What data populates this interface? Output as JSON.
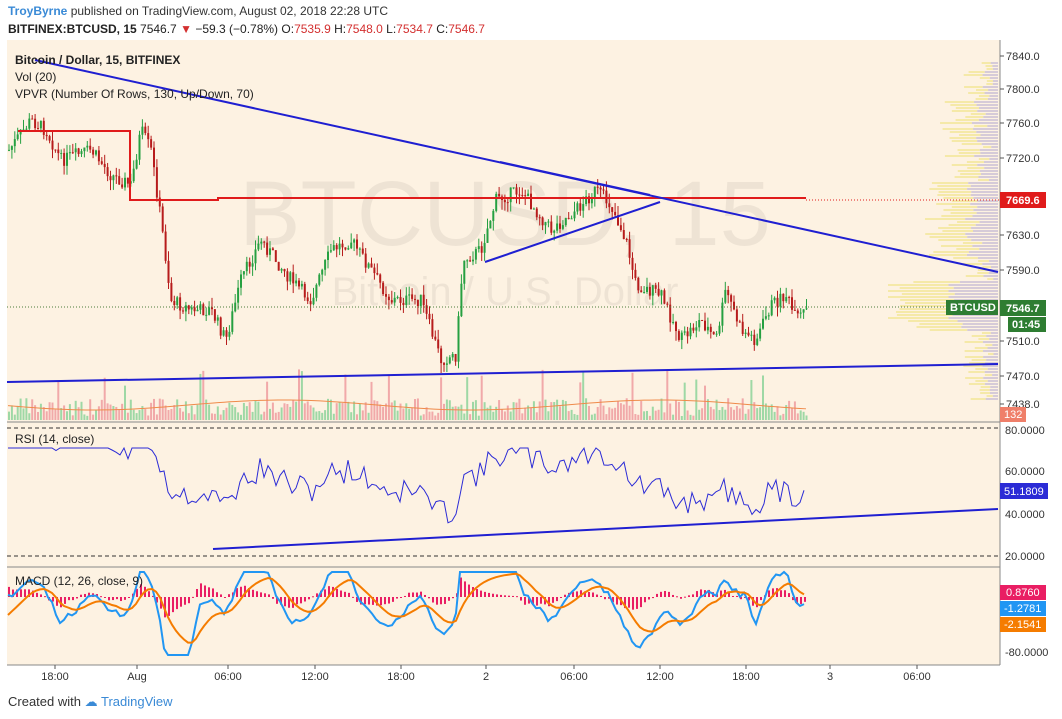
{
  "header": {
    "author": "TroyByrne",
    "published": "published on TradingView.com, August 02, 2018 22:28 UTC",
    "symbol_line": "BITFINEX:BTCUSD, 15",
    "last": "7546.7",
    "change": "−59.3 (−0.78%)",
    "o_label": "O:",
    "o": "7535.9",
    "h_label": "H:",
    "h": "7548.0",
    "l_label": "L:",
    "l": "7534.7",
    "c_label": "C:",
    "c": "7546.7"
  },
  "price_pane": {
    "legend": [
      "Bitcoin / Dollar, 15, BITFINEX",
      "Vol (20)",
      "VPVR (Number Of Rows, 130, Up/Down, 70)"
    ],
    "watermark": "BTCUSD, 15",
    "watermark_sub": "Bitcoin / U.S. Dollar",
    "y_ticks": [
      "7840.0",
      "7800.0",
      "7760.0",
      "7720.0",
      "7670.0",
      "7630.0",
      "7590.0",
      "7550.0",
      "7510.0",
      "7470.0",
      "7438.0"
    ],
    "resistance_label": "7669.6",
    "symbol_badge": "BTCUSD",
    "price_badge": "7546.7",
    "countdown": "01:45",
    "volume_badge": "132"
  },
  "rsi_pane": {
    "legend": "RSI (14, close)",
    "y_ticks": [
      "80.0000",
      "60.0000",
      "40.0000",
      "20.0000"
    ],
    "value_badge": "51.1809"
  },
  "macd_pane": {
    "legend": "MACD (12, 26, close, 9)",
    "y_ticks": [
      "-80.0000"
    ],
    "hist_badge": "0.8760",
    "macd_badge": "-1.2781",
    "signal_badge": "-2.1541"
  },
  "x_axis": {
    "ticks": [
      "18:00",
      "Aug",
      "06:00",
      "12:00",
      "18:00",
      "2",
      "06:00",
      "12:00",
      "18:00",
      "3",
      "06:00"
    ]
  },
  "footer": {
    "created": "Created with",
    "brand": "TradingView"
  },
  "colors": {
    "pane_bg": "#fdf2e2",
    "up": "#26a041",
    "down": "#b71c1c",
    "trend": "#1f1fd1",
    "resistance": "#e01b1b",
    "rsi": "#2b2bd6",
    "macd": "#2196f3",
    "signal": "#f57c00",
    "hist": "#e91e63",
    "vpvr": "#f5e9a8"
  }
}
